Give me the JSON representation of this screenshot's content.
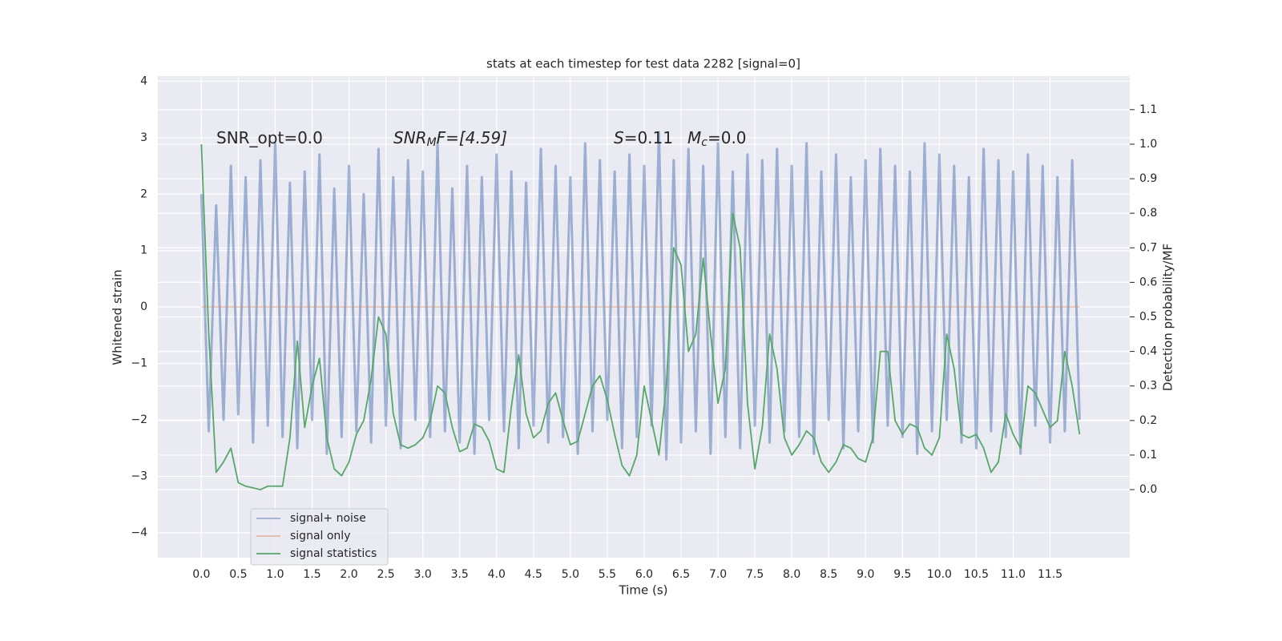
{
  "chart_data": {
    "type": "line",
    "title": "stats at each timestep for test data 2282 [signal=0]",
    "x_label": "Time (s)",
    "y_label": "Whitened strain",
    "y2_label": "Detection probability/MF",
    "annotations": [
      {
        "parts": [
          "SNR_opt=0.0"
        ]
      },
      {
        "parts": [
          "SNR",
          "M",
          "F=[4.59]"
        ]
      },
      {
        "parts": [
          "S",
          "=0.11"
        ]
      },
      {
        "parts": [
          "M",
          "c",
          "=0.0"
        ]
      }
    ],
    "x": [
      0.0,
      0.1,
      0.2,
      0.3,
      0.4,
      0.5,
      0.6,
      0.7,
      0.8,
      0.9,
      1.0,
      1.1,
      1.2,
      1.3,
      1.4,
      1.5,
      1.6,
      1.7,
      1.8,
      1.9,
      2.0,
      2.1,
      2.2,
      2.3,
      2.4,
      2.5,
      2.6,
      2.7,
      2.8,
      2.9,
      3.0,
      3.1,
      3.2,
      3.3,
      3.4,
      3.5,
      3.6,
      3.7,
      3.8,
      3.9,
      4.0,
      4.1,
      4.2,
      4.3,
      4.4,
      4.5,
      4.6,
      4.7,
      4.8,
      4.9,
      5.0,
      5.1,
      5.2,
      5.3,
      5.4,
      5.5,
      5.6,
      5.7,
      5.8,
      5.9,
      6.0,
      6.1,
      6.2,
      6.3,
      6.4,
      6.5,
      6.6,
      6.7,
      6.8,
      6.9,
      7.0,
      7.1,
      7.2,
      7.3,
      7.4,
      7.5,
      7.6,
      7.7,
      7.8,
      7.9,
      8.0,
      8.1,
      8.2,
      8.3,
      8.4,
      8.5,
      8.6,
      8.7,
      8.8,
      8.9,
      9.0,
      9.1,
      9.2,
      9.3,
      9.4,
      9.5,
      9.6,
      9.7,
      9.8,
      9.9,
      10.0,
      10.1,
      10.2,
      10.3,
      10.4,
      10.5,
      10.6,
      10.7,
      10.8,
      10.9,
      11.0,
      11.1,
      11.2,
      11.3,
      11.4,
      11.5,
      11.6,
      11.7,
      11.8,
      11.9
    ],
    "series": [
      {
        "name": "signal+ noise",
        "color": "#4c72b0",
        "values": [
          2.0,
          -2.2,
          1.8,
          -2.0,
          2.5,
          -1.9,
          2.3,
          -2.4,
          2.6,
          -2.1,
          2.9,
          -2.3,
          2.2,
          -2.5,
          2.4,
          -2.0,
          2.7,
          -2.6,
          2.1,
          -2.3,
          2.5,
          -2.2,
          2.0,
          -2.4,
          2.8,
          -2.1,
          2.3,
          -2.5,
          2.6,
          -2.0,
          2.4,
          -2.3,
          2.9,
          -2.2,
          2.1,
          -2.4,
          2.5,
          -2.6,
          2.3,
          -2.0,
          2.7,
          -2.2,
          2.4,
          -2.5,
          2.2,
          -2.1,
          2.8,
          -2.4,
          2.5,
          -2.3,
          2.3,
          -2.6,
          2.9,
          -2.2,
          2.6,
          -2.0,
          2.4,
          -2.5,
          2.7,
          -2.3,
          2.5,
          -2.1,
          3.1,
          -2.7,
          2.6,
          -2.4,
          2.8,
          -2.2,
          2.5,
          -2.6,
          2.9,
          -2.3,
          2.4,
          -2.5,
          2.7,
          -2.1,
          2.6,
          -2.4,
          2.8,
          -2.2,
          2.5,
          -2.3,
          2.9,
          -2.6,
          2.4,
          -2.0,
          2.7,
          -2.5,
          2.3,
          -2.2,
          2.6,
          -2.4,
          2.8,
          -2.1,
          2.5,
          -2.3,
          2.4,
          -2.6,
          2.9,
          -2.2,
          2.7,
          -2.0,
          2.5,
          -2.4,
          2.3,
          -2.5,
          2.8,
          -2.2,
          2.6,
          -2.3,
          2.4,
          -2.6,
          2.7,
          -2.1,
          2.5,
          -2.4,
          2.3,
          -2.2,
          2.6,
          -2.0
        ]
      },
      {
        "name": "signal only",
        "color": "#dd8452",
        "values": [
          0,
          0,
          0,
          0,
          0,
          0,
          0,
          0,
          0,
          0,
          0,
          0,
          0,
          0,
          0,
          0,
          0,
          0,
          0,
          0,
          0,
          0,
          0,
          0,
          0,
          0,
          0,
          0,
          0,
          0,
          0,
          0,
          0,
          0,
          0,
          0,
          0,
          0,
          0,
          0,
          0,
          0,
          0,
          0,
          0,
          0,
          0,
          0,
          0,
          0,
          0,
          0,
          0,
          0,
          0,
          0,
          0,
          0,
          0,
          0,
          0,
          0,
          0,
          0,
          0,
          0,
          0,
          0,
          0,
          0,
          0,
          0,
          0,
          0,
          0,
          0,
          0,
          0,
          0,
          0,
          0,
          0,
          0,
          0,
          0,
          0,
          0,
          0,
          0,
          0,
          0,
          0,
          0,
          0,
          0,
          0,
          0,
          0,
          0,
          0,
          0,
          0,
          0,
          0,
          0,
          0,
          0,
          0,
          0,
          0,
          0,
          0,
          0,
          0,
          0,
          0,
          0,
          0,
          0,
          0
        ]
      },
      {
        "name": "signal statistics",
        "color": "#55a868",
        "axis": "y2",
        "values": [
          1.0,
          0.45,
          0.05,
          0.08,
          0.12,
          0.02,
          0.01,
          0.005,
          0.0,
          0.01,
          0.01,
          0.01,
          0.15,
          0.43,
          0.18,
          0.3,
          0.38,
          0.15,
          0.06,
          0.04,
          0.08,
          0.16,
          0.2,
          0.32,
          0.5,
          0.45,
          0.22,
          0.13,
          0.12,
          0.13,
          0.15,
          0.2,
          0.3,
          0.28,
          0.18,
          0.11,
          0.12,
          0.19,
          0.18,
          0.14,
          0.06,
          0.05,
          0.24,
          0.39,
          0.22,
          0.15,
          0.17,
          0.25,
          0.28,
          0.2,
          0.13,
          0.14,
          0.22,
          0.3,
          0.33,
          0.26,
          0.16,
          0.07,
          0.04,
          0.1,
          0.3,
          0.2,
          0.1,
          0.3,
          0.7,
          0.65,
          0.4,
          0.45,
          0.67,
          0.45,
          0.25,
          0.35,
          0.8,
          0.7,
          0.25,
          0.06,
          0.18,
          0.45,
          0.35,
          0.15,
          0.1,
          0.13,
          0.17,
          0.15,
          0.08,
          0.05,
          0.08,
          0.13,
          0.12,
          0.09,
          0.08,
          0.15,
          0.4,
          0.4,
          0.2,
          0.16,
          0.19,
          0.18,
          0.12,
          0.1,
          0.15,
          0.45,
          0.35,
          0.16,
          0.15,
          0.16,
          0.12,
          0.05,
          0.08,
          0.22,
          0.16,
          0.12,
          0.3,
          0.28,
          0.23,
          0.18,
          0.2,
          0.4,
          0.3,
          0.16
        ]
      }
    ],
    "xlim": [
      -0.59,
      12.58
    ],
    "xticks": [
      {
        "value": 0,
        "label": "0.0"
      },
      0.5,
      {
        "value": 1,
        "label": "1.0"
      },
      1.5,
      {
        "value": 2,
        "label": "2.0"
      },
      2.5,
      {
        "value": 3,
        "label": "3.0"
      },
      3.5,
      {
        "value": 4,
        "label": "4.0"
      },
      4.5,
      {
        "value": 5,
        "label": "5.0"
      },
      5.5,
      {
        "value": 6,
        "label": "6.0"
      },
      6.5,
      {
        "value": 7,
        "label": "7.0"
      },
      7.5,
      {
        "value": 8,
        "label": "8.0"
      },
      8.5,
      {
        "value": 9,
        "label": "9.0"
      },
      9.5,
      {
        "value": 10,
        "label": "10.0"
      },
      10.5,
      {
        "value": 11,
        "label": "11.0"
      },
      11.5
    ],
    "ylim": [
      -4.44,
      4.09
    ],
    "yticks": [
      {
        "value": -4,
        "label": "−4"
      },
      {
        "value": -3,
        "label": "−3"
      },
      {
        "value": -2,
        "label": "−2"
      },
      {
        "value": -1,
        "label": "−1"
      },
      0,
      1,
      2,
      3,
      4
    ],
    "y2lim": [
      -0.197,
      1.197
    ],
    "y2ticks": [
      {
        "value": 0,
        "label": "0.0"
      },
      0.1,
      0.2,
      0.3,
      0.4,
      0.5,
      0.6,
      0.7,
      0.8,
      0.9,
      {
        "value": 1,
        "label": "1.0"
      },
      1.1
    ],
    "grid": true,
    "legend": "lower left"
  }
}
